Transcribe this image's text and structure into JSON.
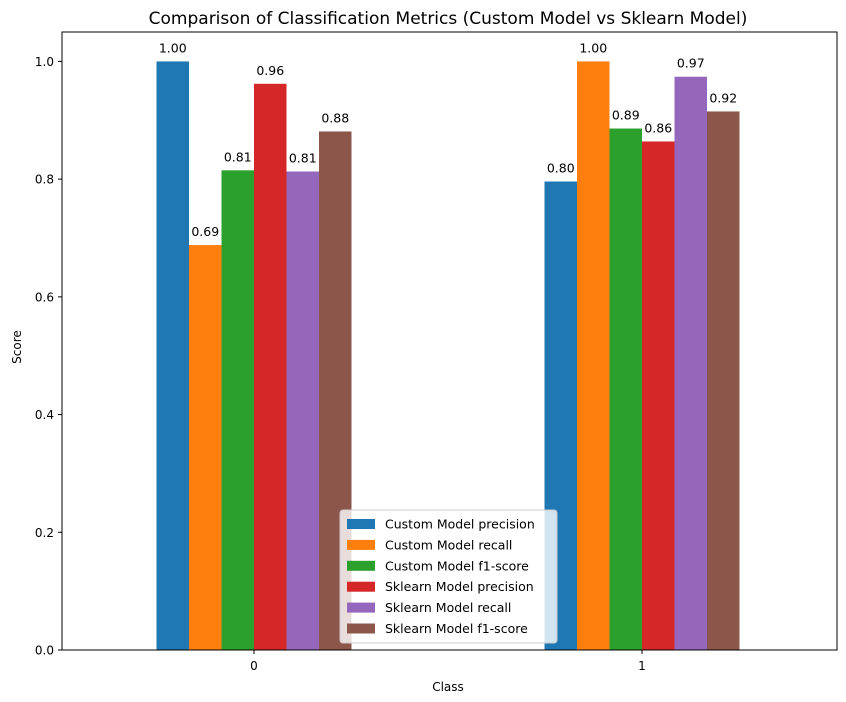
{
  "chart_data": {
    "type": "bar",
    "title": "Comparison of Classification Metrics (Custom Model vs Sklearn Model)",
    "xlabel": "Class",
    "ylabel": "Score",
    "categories": [
      "0",
      "1"
    ],
    "ylim": [
      0,
      1.05
    ],
    "yticks": [
      "0.0",
      "0.2",
      "0.4",
      "0.6",
      "0.8",
      "1.0"
    ],
    "grid": false,
    "legend_position": "bottom-center",
    "series": [
      {
        "name": "Custom Model precision",
        "color": "#1f77b4",
        "values": [
          1.0,
          0.796
        ],
        "labels": [
          "1.00",
          "0.80"
        ]
      },
      {
        "name": "Custom Model recall",
        "color": "#ff7f0e",
        "values": [
          0.688,
          1.0
        ],
        "labels": [
          "0.69",
          "1.00"
        ]
      },
      {
        "name": "Custom Model f1-score",
        "color": "#2ca02c",
        "values": [
          0.815,
          0.886
        ],
        "labels": [
          "0.81",
          "0.89"
        ]
      },
      {
        "name": "Sklearn Model precision",
        "color": "#d62728",
        "values": [
          0.962,
          0.864
        ],
        "labels": [
          "0.96",
          "0.86"
        ]
      },
      {
        "name": "Sklearn Model recall",
        "color": "#9467bd",
        "values": [
          0.813,
          0.974
        ],
        "labels": [
          "0.81",
          "0.97"
        ]
      },
      {
        "name": "Sklearn Model f1-score",
        "color": "#8c564b",
        "values": [
          0.881,
          0.915
        ],
        "labels": [
          "0.88",
          "0.92"
        ]
      }
    ]
  }
}
